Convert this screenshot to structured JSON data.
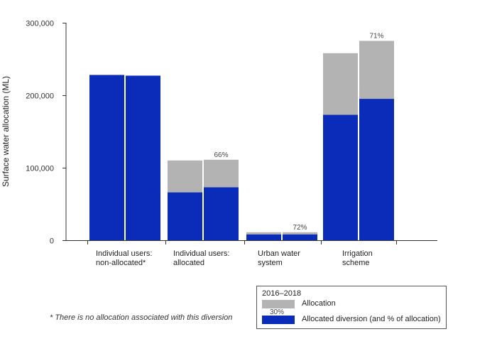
{
  "chart_data": {
    "type": "bar",
    "subtype": "stacked-grouped",
    "title": "",
    "xlabel": "",
    "ylabel": "Surface water allocation (ML)",
    "ylim": [
      0,
      300000
    ],
    "yticks": [
      0,
      100000,
      200000,
      300000
    ],
    "ytick_labels": [
      "0",
      "100,000",
      "200,000",
      "300,000"
    ],
    "grid": false,
    "legend_position": "bottom-right",
    "categories": [
      {
        "label_line1": "Individual users:",
        "label_line2": "non-allocated*"
      },
      {
        "label_line1": "Individual users:",
        "label_line2": "allocated"
      },
      {
        "label_line1": "Urban water",
        "label_line2": "system"
      },
      {
        "label_line1": "Irrigation",
        "label_line2": "scheme"
      }
    ],
    "groups": [
      {
        "bars": [
          {
            "allocation": 228000,
            "diversion": 228000,
            "pct_label": ""
          },
          {
            "allocation": 227000,
            "diversion": 227000,
            "pct_label": ""
          }
        ]
      },
      {
        "bars": [
          {
            "allocation": 110000,
            "diversion": 66000,
            "pct_label": ""
          },
          {
            "allocation": 111000,
            "diversion": 73000,
            "pct_label": "66%"
          }
        ]
      },
      {
        "bars": [
          {
            "allocation": 11000,
            "diversion": 8000,
            "pct_label": ""
          },
          {
            "allocation": 11000,
            "diversion": 8000,
            "pct_label": "72%"
          }
        ]
      },
      {
        "bars": [
          {
            "allocation": 258000,
            "diversion": 173000,
            "pct_label": ""
          },
          {
            "allocation": 275000,
            "diversion": 195000,
            "pct_label": "71%"
          }
        ]
      }
    ],
    "series": [
      {
        "name": "Allocation",
        "color": "#b3b3b3"
      },
      {
        "name": "Allocated diversion (and % of allocation)",
        "color": "#0a2cb8"
      }
    ]
  },
  "legend": {
    "title": "2016–2018",
    "allocation_label": "Allocation",
    "diversion_label": "Allocated diversion (and % of allocation)",
    "sample_pct": "30%"
  },
  "footnote": "* There is no allocation associated with this diversion"
}
